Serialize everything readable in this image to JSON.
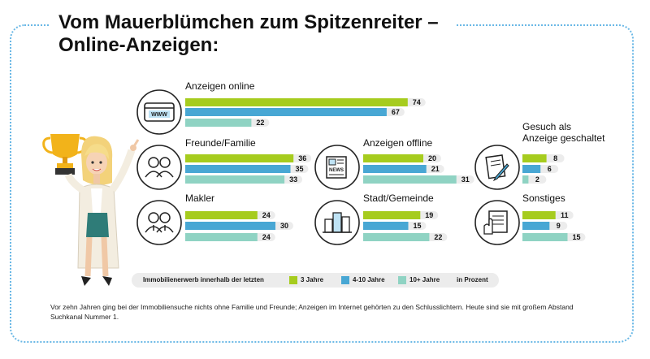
{
  "title": {
    "line1": "Vom Mauerblümchen zum Spitzenreiter –",
    "line2": "Online-Anzeigen:"
  },
  "colors": {
    "series_3": "#a6cc1e",
    "series_4_10": "#48a7d4",
    "series_10plus": "#8fd3c3",
    "frame": "#6ab8e6"
  },
  "chart_data": [
    {
      "type": "bar",
      "category": "Anzeigen online",
      "icon": "browser-www-icon",
      "series": [
        {
          "name": "3 Jahre",
          "values": [
            74
          ]
        },
        {
          "name": "4-10 Jahre",
          "values": [
            67
          ]
        },
        {
          "name": "10+ Jahre",
          "values": [
            22
          ]
        }
      ]
    },
    {
      "type": "bar",
      "category": "Freunde/Familie",
      "icon": "friends-family-icon",
      "series": [
        {
          "name": "3 Jahre",
          "values": [
            36
          ]
        },
        {
          "name": "4-10 Jahre",
          "values": [
            35
          ]
        },
        {
          "name": "10+ Jahre",
          "values": [
            33
          ]
        }
      ]
    },
    {
      "type": "bar",
      "category": "Makler",
      "icon": "realtor-icon",
      "series": [
        {
          "name": "3 Jahre",
          "values": [
            24
          ]
        },
        {
          "name": "4-10 Jahre",
          "values": [
            30
          ]
        },
        {
          "name": "10+ Jahre",
          "values": [
            24
          ]
        }
      ]
    },
    {
      "type": "bar",
      "category": "Anzeigen offline",
      "icon": "newspaper-icon",
      "series": [
        {
          "name": "3 Jahre",
          "values": [
            20
          ]
        },
        {
          "name": "4-10 Jahre",
          "values": [
            21
          ]
        },
        {
          "name": "10+ Jahre",
          "values": [
            31
          ]
        }
      ]
    },
    {
      "type": "bar",
      "category": "Stadt/Gemeinde",
      "icon": "city-icon",
      "series": [
        {
          "name": "3 Jahre",
          "values": [
            19
          ]
        },
        {
          "name": "4-10 Jahre",
          "values": [
            15
          ]
        },
        {
          "name": "10+ Jahre",
          "values": [
            22
          ]
        }
      ]
    },
    {
      "type": "bar",
      "category": "Gesuch als Anzeige geschaltet",
      "category_lines": [
        "Gesuch als",
        "Anzeige geschaltet"
      ],
      "icon": "document-pen-icon",
      "series": [
        {
          "name": "3 Jahre",
          "values": [
            8
          ]
        },
        {
          "name": "4-10 Jahre",
          "values": [
            6
          ]
        },
        {
          "name": "10+ Jahre",
          "values": [
            2
          ]
        }
      ]
    },
    {
      "type": "bar",
      "category": "Sonstiges",
      "icon": "hand-list-icon",
      "series": [
        {
          "name": "3 Jahre",
          "values": [
            11
          ]
        },
        {
          "name": "4-10 Jahre",
          "values": [
            9
          ]
        },
        {
          "name": "10+ Jahre",
          "values": [
            15
          ]
        }
      ]
    }
  ],
  "legend": {
    "prefix": "Immobilienerwerb innerhalb der letzten",
    "items": [
      "3 Jahre",
      "4-10 Jahre",
      "10+ Jahre"
    ],
    "unit": "in Prozent"
  },
  "footnote": "Vor zehn Jahren ging bei der Immobiliensuche nichts ohne Familie und Freunde; Anzeigen im Internet gehörten zu den Schlusslichtern. Heute sind sie mit großem Abstand Suchkanal Nummer 1."
}
